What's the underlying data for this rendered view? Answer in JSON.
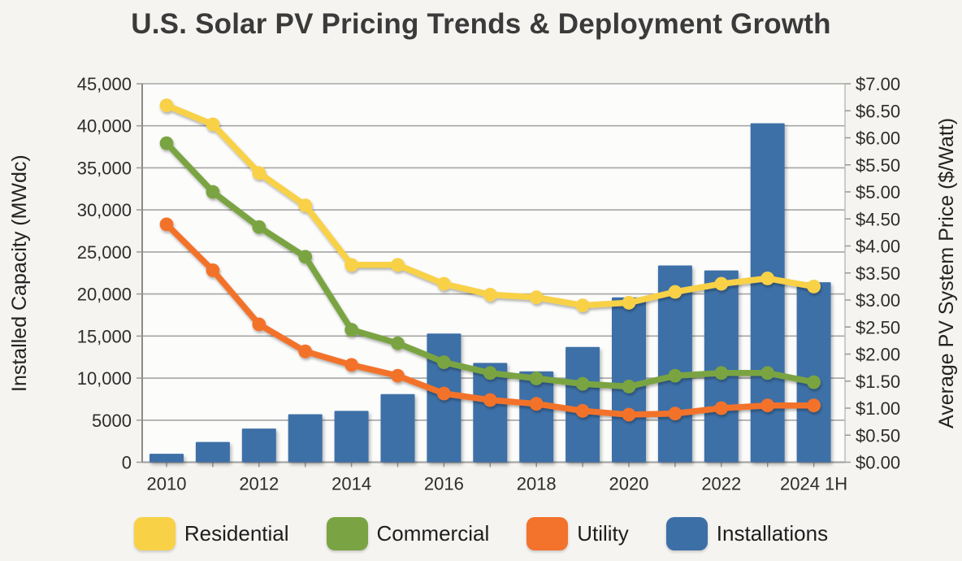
{
  "chart_data": {
    "type": "bar",
    "combo": "bars + 3 price lines",
    "title": "U.S. Solar PV Pricing Trends & Deployment Growth",
    "categories": [
      "2010",
      "2011",
      "2012",
      "2013",
      "2014",
      "2015",
      "2016",
      "2017",
      "2018",
      "2019",
      "2020",
      "2021",
      "2022",
      "2023",
      "2024 1H"
    ],
    "x_ticks": [
      {
        "label": "2010",
        "index": 0
      },
      {
        "label": "2012",
        "index": 2
      },
      {
        "label": "2014",
        "index": 4
      },
      {
        "label": "2016",
        "index": 6
      },
      {
        "label": "2018",
        "index": 8
      },
      {
        "label": "2020",
        "index": 10
      },
      {
        "label": "2022",
        "index": 12
      },
      {
        "label": "2024 1H",
        "index": 14
      }
    ],
    "left_axis": {
      "label": "Installed Capacity (MWdc)",
      "min": 0,
      "max": 45000,
      "step": 5000,
      "tick_labels": [
        "45,000",
        "40,000",
        "35,000",
        "30,000",
        "25,000",
        "20,000",
        "15,000",
        "10,000",
        "5000",
        "0"
      ]
    },
    "right_axis": {
      "label": "Average PV System Price ($/Watt)",
      "min": 0,
      "max": 7,
      "step": 0.5,
      "tick_labels": [
        "$7.00",
        "$6.50",
        "$6.00",
        "$5.50",
        "$5.00",
        "$4.50",
        "$4.00",
        "$3.50",
        "$3.00",
        "$2.50",
        "$2.00",
        "$1.50",
        "$1.00",
        "$0.50",
        "$0.00"
      ]
    },
    "bar_series": {
      "name": "Installations",
      "axis": "left",
      "color": "#3d6fa7",
      "values": [
        1000,
        2400,
        4000,
        5700,
        6100,
        8100,
        15300,
        11800,
        10800,
        13700,
        19600,
        23400,
        22800,
        40300,
        21400
      ]
    },
    "line_series": [
      {
        "name": "Residential",
        "axis": "right",
        "color": "#f8d147",
        "values": [
          6.6,
          6.25,
          5.35,
          4.75,
          3.65,
          3.65,
          3.3,
          3.1,
          3.05,
          2.9,
          2.95,
          3.15,
          3.3,
          3.4,
          3.25
        ]
      },
      {
        "name": "Commercial",
        "axis": "right",
        "color": "#7aa443",
        "values": [
          5.9,
          5.0,
          4.35,
          3.8,
          2.45,
          2.2,
          1.85,
          1.65,
          1.55,
          1.45,
          1.4,
          1.6,
          1.65,
          1.65,
          1.48
        ]
      },
      {
        "name": "Utility",
        "axis": "right",
        "color": "#f3722c",
        "values": [
          4.4,
          3.55,
          2.55,
          2.05,
          1.8,
          1.6,
          1.27,
          1.15,
          1.08,
          0.95,
          0.88,
          0.9,
          1.0,
          1.05,
          1.05
        ]
      }
    ],
    "legend": [
      {
        "label": "Residential",
        "color": "#f8d147"
      },
      {
        "label": "Commercial",
        "color": "#7aa443"
      },
      {
        "label": "Utility",
        "color": "#f3722c"
      },
      {
        "label": "Installations",
        "color": "#3d6fa7"
      }
    ],
    "grid": "horizontal gridlines every 5000 MWdc",
    "legend_position": "bottom",
    "plot_bg": "#fcfcfb",
    "grid_color": "#a6a6a6",
    "axis_text_color": "#2d2d2d"
  }
}
